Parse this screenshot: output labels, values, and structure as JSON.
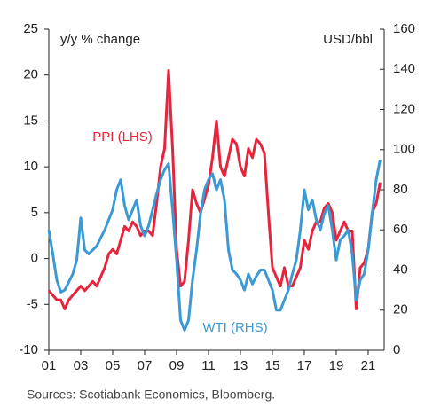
{
  "chart_data": {
    "type": "line",
    "y_label": "y/y % change",
    "y2_label": "USD/bbl",
    "source": "Sources: Scotiabank Economics, Bloomberg.",
    "x": [
      2001,
      2001.25,
      2001.5,
      2001.75,
      2002,
      2002.25,
      2002.5,
      2002.75,
      2003,
      2003.25,
      2003.5,
      2003.75,
      2004,
      2004.25,
      2004.5,
      2004.75,
      2005,
      2005.25,
      2005.5,
      2005.75,
      2006,
      2006.25,
      2006.5,
      2006.75,
      2007,
      2007.25,
      2007.5,
      2007.75,
      2008,
      2008.25,
      2008.5,
      2008.75,
      2009,
      2009.25,
      2009.5,
      2009.75,
      2010,
      2010.25,
      2010.5,
      2010.75,
      2011,
      2011.25,
      2011.5,
      2011.75,
      2012,
      2012.25,
      2012.5,
      2012.75,
      2013,
      2013.25,
      2013.5,
      2013.75,
      2014,
      2014.25,
      2014.5,
      2014.75,
      2015,
      2015.25,
      2015.5,
      2015.75,
      2016,
      2016.25,
      2016.5,
      2016.75,
      2017,
      2017.25,
      2017.5,
      2017.75,
      2018,
      2018.25,
      2018.5,
      2018.75,
      2019,
      2019.25,
      2019.5,
      2019.75,
      2020,
      2020.25,
      2020.5,
      2020.75,
      2021,
      2021.25,
      2021.5,
      2021.75
    ],
    "series": [
      {
        "name": "PPI (LHS)",
        "color": "#e8233c",
        "axis": "y",
        "values": [
          -3.5,
          -4,
          -4.5,
          -4.5,
          -5.5,
          -4.5,
          -4,
          -3.5,
          -3,
          -3.5,
          -3,
          -2.5,
          -3,
          -2,
          -1,
          0.5,
          1,
          0.5,
          2,
          3.5,
          3,
          4,
          3.5,
          2.5,
          3,
          3,
          2.5,
          6,
          10,
          12,
          20.5,
          12,
          1,
          -3,
          -2.5,
          2,
          7.5,
          6,
          5,
          6.5,
          8,
          11,
          15,
          10,
          9,
          11,
          13,
          12.5,
          10,
          9,
          12,
          11,
          13,
          12.5,
          11.5,
          5,
          -1,
          -2,
          -3,
          -1,
          -3,
          -3,
          -2,
          -1,
          2,
          1,
          3,
          4,
          4,
          5.5,
          6,
          5,
          2,
          3,
          4,
          3,
          3,
          -5.5,
          -1,
          -0.5,
          1,
          5,
          6,
          8.3
        ]
      },
      {
        "name": "WTI (RHS)",
        "color": "#3b9ad3",
        "axis": "y2",
        "values": [
          60,
          48,
          35,
          29,
          30,
          34,
          38,
          45,
          66,
          50,
          48,
          50,
          52,
          56,
          60,
          65,
          70,
          80,
          85,
          72,
          65,
          70,
          75,
          62,
          57,
          62,
          70,
          78,
          85,
          90,
          93,
          70,
          45,
          15,
          10,
          15,
          35,
          50,
          68,
          80,
          85,
          88,
          80,
          85,
          75,
          50,
          40,
          38,
          35,
          30,
          38,
          33,
          37,
          40,
          40,
          35,
          30,
          20,
          20,
          25,
          30,
          38,
          45,
          60,
          80,
          70,
          75,
          65,
          60,
          68,
          72,
          60,
          45,
          55,
          57,
          60,
          48,
          25,
          35,
          38,
          50,
          68,
          85,
          95
        ]
      }
    ],
    "xlim": [
      2001,
      2022
    ],
    "xticks": [
      {
        "value": 2001,
        "label": "01"
      },
      {
        "value": 2003,
        "label": "03"
      },
      {
        "value": 2005,
        "label": "05"
      },
      {
        "value": 2007,
        "label": "07"
      },
      {
        "value": 2009,
        "label": "09"
      },
      {
        "value": 2011,
        "label": "11"
      },
      {
        "value": 2013,
        "label": "13"
      },
      {
        "value": 2015,
        "label": "15"
      },
      {
        "value": 2017,
        "label": "17"
      },
      {
        "value": 2019,
        "label": "19"
      },
      {
        "value": 2021,
        "label": "21"
      }
    ],
    "ylim": [
      -10,
      25
    ],
    "yticks": [
      -10,
      -5,
      0,
      5,
      10,
      15,
      20,
      25
    ],
    "y2lim": [
      0,
      160
    ],
    "y2ticks": [
      0,
      20,
      40,
      60,
      80,
      100,
      120,
      140,
      160
    ]
  }
}
